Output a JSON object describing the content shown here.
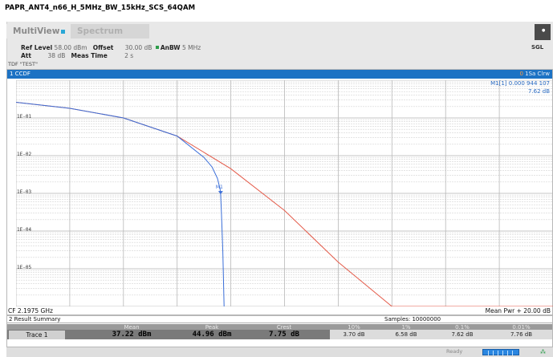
{
  "document": {
    "title": "PAPR_ANT4_n66_H_5MHz_BW_15kHz_SCS_64QAM"
  },
  "tabs": [
    {
      "label": "MultiView"
    },
    {
      "label": "Spectrum"
    }
  ],
  "sweep_mode": "SGL",
  "settings": {
    "ref_level_label": "Ref Level",
    "ref_level_value": "58.00 dBm",
    "offset_label": "Offset",
    "offset_value": "30.00 dB",
    "anbw_label": "AnBW",
    "anbw_value": "5 MHz",
    "att_label": "Att",
    "att_value": "38 dB",
    "meas_time_label": "Meas Time",
    "meas_time_value": "2 s",
    "tdf": "TDF \"TEST\""
  },
  "diagram": {
    "name": "1 CCDF",
    "trace_mode_index": "0",
    "trace_mode": "1Sa Clrw",
    "marker_label": "M1[1]",
    "marker_value": "0.000 944 107",
    "marker_level": "7.62 dB",
    "marker_tag": "M1",
    "center_freq": "CF 2.1975 GHz",
    "mean_pwr": "Mean Pwr + 20.00 dB"
  },
  "chart_data": {
    "type": "line",
    "xlim": [
      0,
      20
    ],
    "ylim_log10": [
      -6,
      0
    ],
    "ytick_labels": [
      "1E-01",
      "1E-02",
      "1E-03",
      "1E-04",
      "1E-05"
    ],
    "series": [
      {
        "color": "#7b3fb5",
        "x": [
          0,
          2,
          4,
          6,
          7,
          7.3,
          7.5,
          7.6,
          7.62,
          7.65,
          7.7,
          7.75
        ],
        "y": [
          0.26,
          0.18,
          0.1,
          0.033,
          0.009,
          0.005,
          0.0025,
          0.0013,
          0.000944,
          0.0003,
          3e-05,
          2e-07
        ]
      },
      {
        "color": "#e45b4a",
        "x": [
          0,
          2,
          4,
          6,
          8,
          10,
          12,
          14,
          16,
          18,
          20
        ],
        "y": [
          0.26,
          0.18,
          0.1,
          0.033,
          0.0045,
          0.00035,
          1.5e-05,
          4e-07,
          1e-09,
          5e-13,
          1e-16
        ]
      }
    ],
    "marker": {
      "x": 7.62,
      "y": 0.000944
    },
    "colors": {
      "header": "#1c72c4",
      "ccdf_trace": "#3a6ed8",
      "reference": "#e45b4a"
    }
  },
  "summary": {
    "title": "2 Result Summary",
    "samples": "Samples: 10000000",
    "headers": [
      "Mean",
      "Peak",
      "Crest",
      "10%",
      "1%",
      "0.1%",
      "0.01%"
    ],
    "trace_label": "Trace 1",
    "values": [
      "37.22 dBm",
      "44.96 dBm",
      "7.75 dB",
      "3.70 dB",
      "6.58 dB",
      "7.62 dB",
      "7.76 dB"
    ]
  },
  "status": {
    "text": "Ready"
  }
}
